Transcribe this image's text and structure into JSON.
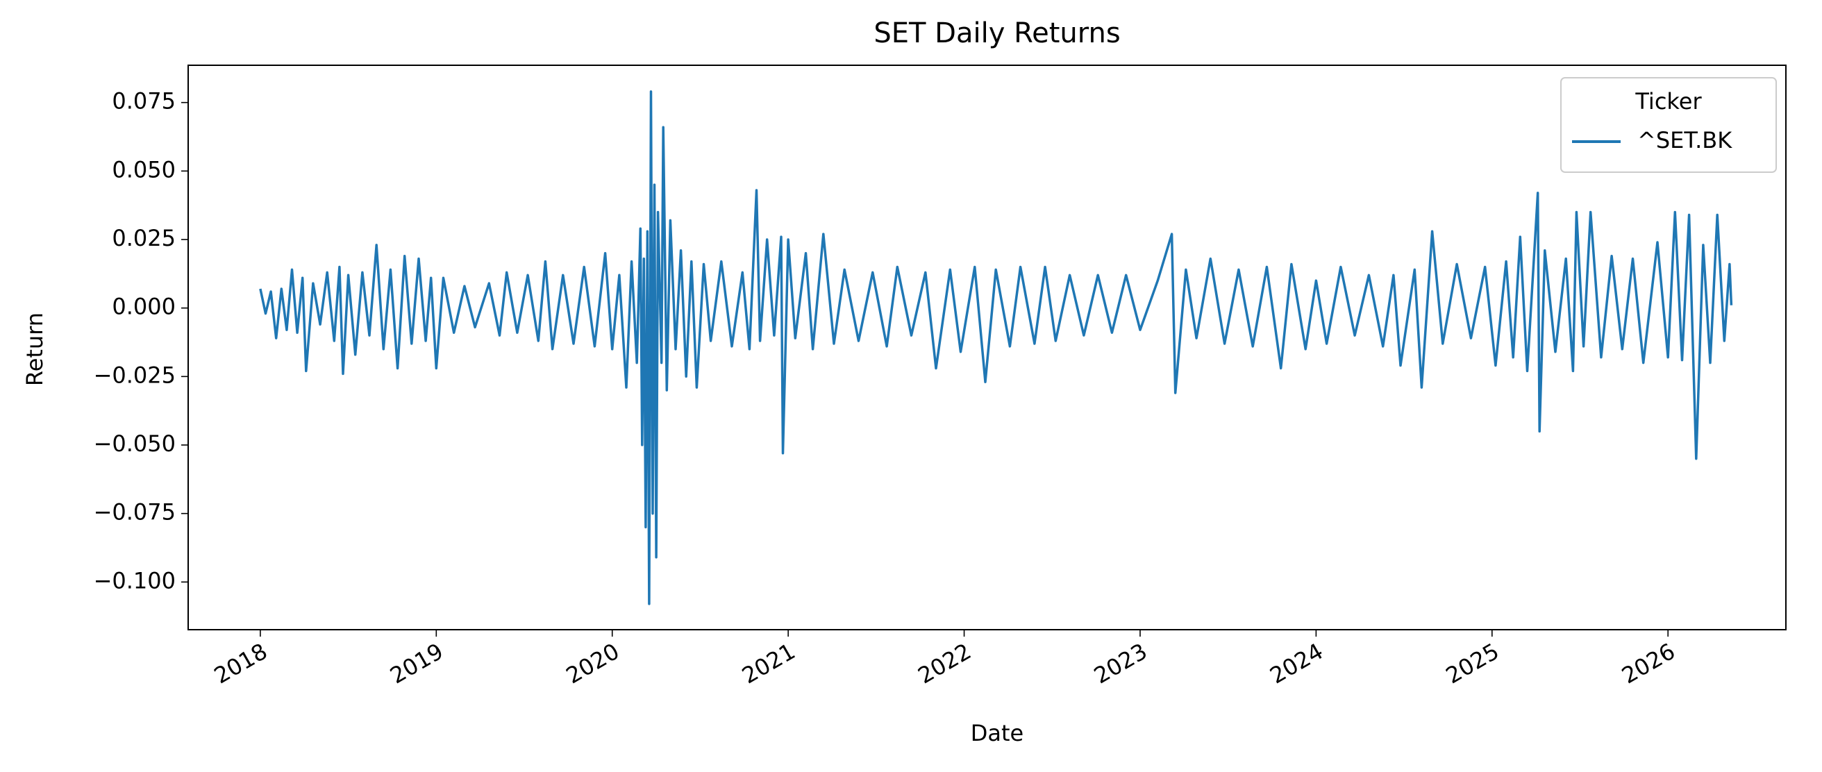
{
  "chart_data": {
    "type": "line",
    "title": "SET Daily Returns",
    "x_label": "Date",
    "y_label": "Return",
    "legend_title": "Ticker",
    "legend_loc": "upper right",
    "xlim": [
      2017.59,
      2026.67
    ],
    "xticks": [
      2018,
      2019,
      2020,
      2021,
      2022,
      2023,
      2024,
      2025,
      2026
    ],
    "ylim": [
      -0.1174,
      0.0886
    ],
    "yticks": [
      {
        "value": -0.1,
        "label": "−0.100"
      },
      {
        "value": -0.075,
        "label": "−0.075"
      },
      {
        "value": -0.05,
        "label": "−0.050"
      },
      {
        "value": -0.025,
        "label": "−0.025"
      },
      {
        "value": 0,
        "label": "0.000"
      },
      0.025,
      {
        "value": 0.05,
        "label": "0.050"
      },
      0.075
    ],
    "grid": false,
    "x": [
      2018.0,
      2018.03,
      2018.06,
      2018.09,
      2018.12,
      2018.15,
      2018.18,
      2018.21,
      2018.24,
      2018.26,
      2018.3,
      2018.34,
      2018.38,
      2018.42,
      2018.45,
      2018.47,
      2018.5,
      2018.54,
      2018.58,
      2018.62,
      2018.66,
      2018.7,
      2018.74,
      2018.78,
      2018.82,
      2018.86,
      2018.9,
      2018.94,
      2018.97,
      2019.0,
      2019.04,
      2019.1,
      2019.16,
      2019.22,
      2019.3,
      2019.36,
      2019.4,
      2019.46,
      2019.52,
      2019.58,
      2019.62,
      2019.66,
      2019.72,
      2019.78,
      2019.84,
      2019.9,
      2019.96,
      2020.0,
      2020.04,
      2020.08,
      2020.11,
      2020.14,
      2020.16,
      2020.17,
      2020.18,
      2020.19,
      2020.2,
      2020.21,
      2020.22,
      2020.23,
      2020.24,
      2020.25,
      2020.26,
      2020.28,
      2020.29,
      2020.31,
      2020.33,
      2020.36,
      2020.39,
      2020.42,
      2020.45,
      2020.48,
      2020.52,
      2020.56,
      2020.62,
      2020.68,
      2020.74,
      2020.78,
      2020.82,
      2020.84,
      2020.88,
      2020.92,
      2020.96,
      2020.97,
      2021.0,
      2021.04,
      2021.1,
      2021.14,
      2021.2,
      2021.26,
      2021.32,
      2021.4,
      2021.48,
      2021.56,
      2021.62,
      2021.7,
      2021.78,
      2021.84,
      2021.92,
      2021.98,
      2022.06,
      2022.12,
      2022.18,
      2022.26,
      2022.32,
      2022.4,
      2022.46,
      2022.52,
      2022.6,
      2022.68,
      2022.76,
      2022.84,
      2022.92,
      2023.0,
      2023.1,
      2023.18,
      2023.2,
      2023.26,
      2023.32,
      2023.4,
      2023.48,
      2023.56,
      2023.64,
      2023.72,
      2023.8,
      2023.86,
      2023.94,
      2024.0,
      2024.06,
      2024.14,
      2024.22,
      2024.3,
      2024.38,
      2024.44,
      2024.48,
      2024.56,
      2024.6,
      2024.66,
      2024.72,
      2024.8,
      2024.88,
      2024.96,
      2025.02,
      2025.08,
      2025.12,
      2025.16,
      2025.2,
      2025.26,
      2025.27,
      2025.3,
      2025.36,
      2025.42,
      2025.46,
      2025.48,
      2025.52,
      2025.56,
      2025.62,
      2025.68,
      2025.74,
      2025.8,
      2025.86,
      2025.94,
      2026.0,
      2026.04,
      2026.08,
      2026.12,
      2026.16,
      2026.2,
      2026.24,
      2026.28,
      2026.32,
      2026.35,
      2026.36
    ],
    "series": [
      {
        "name": "^SET.BK",
        "color": "#1f77b4",
        "values": [
          0.007,
          -0.002,
          0.006,
          -0.011,
          0.007,
          -0.008,
          0.014,
          -0.009,
          0.011,
          -0.023,
          0.009,
          -0.006,
          0.013,
          -0.012,
          0.015,
          -0.024,
          0.012,
          -0.017,
          0.013,
          -0.01,
          0.023,
          -0.015,
          0.014,
          -0.022,
          0.019,
          -0.013,
          0.018,
          -0.012,
          0.011,
          -0.022,
          0.011,
          -0.009,
          0.008,
          -0.007,
          0.009,
          -0.01,
          0.013,
          -0.009,
          0.012,
          -0.012,
          0.017,
          -0.015,
          0.012,
          -0.013,
          0.015,
          -0.014,
          0.02,
          -0.015,
          0.012,
          -0.029,
          0.017,
          -0.02,
          0.029,
          -0.05,
          0.018,
          -0.08,
          0.028,
          -0.108,
          0.079,
          -0.075,
          0.045,
          -0.091,
          0.035,
          -0.02,
          0.066,
          -0.03,
          0.032,
          -0.015,
          0.021,
          -0.025,
          0.017,
          -0.029,
          0.016,
          -0.012,
          0.017,
          -0.014,
          0.013,
          -0.015,
          0.043,
          -0.012,
          0.025,
          -0.01,
          0.026,
          -0.053,
          0.025,
          -0.011,
          0.02,
          -0.015,
          0.027,
          -0.013,
          0.014,
          -0.012,
          0.013,
          -0.014,
          0.015,
          -0.01,
          0.013,
          -0.022,
          0.014,
          -0.016,
          0.015,
          -0.027,
          0.014,
          -0.014,
          0.015,
          -0.013,
          0.015,
          -0.012,
          0.012,
          -0.01,
          0.012,
          -0.009,
          0.012,
          -0.008,
          0.01,
          0.027,
          -0.031,
          0.014,
          -0.011,
          0.018,
          -0.013,
          0.014,
          -0.014,
          0.015,
          -0.022,
          0.016,
          -0.015,
          0.01,
          -0.013,
          0.015,
          -0.01,
          0.012,
          -0.014,
          0.012,
          -0.021,
          0.014,
          -0.029,
          0.028,
          -0.013,
          0.016,
          -0.011,
          0.015,
          -0.021,
          0.017,
          -0.018,
          0.026,
          -0.023,
          0.042,
          -0.045,
          0.021,
          -0.016,
          0.018,
          -0.023,
          0.035,
          -0.014,
          0.035,
          -0.018,
          0.019,
          -0.015,
          0.018,
          -0.02,
          0.024,
          -0.018,
          0.035,
          -0.019,
          0.034,
          -0.055,
          0.023,
          -0.02,
          0.034,
          -0.012,
          0.016,
          0.001
        ]
      }
    ]
  }
}
